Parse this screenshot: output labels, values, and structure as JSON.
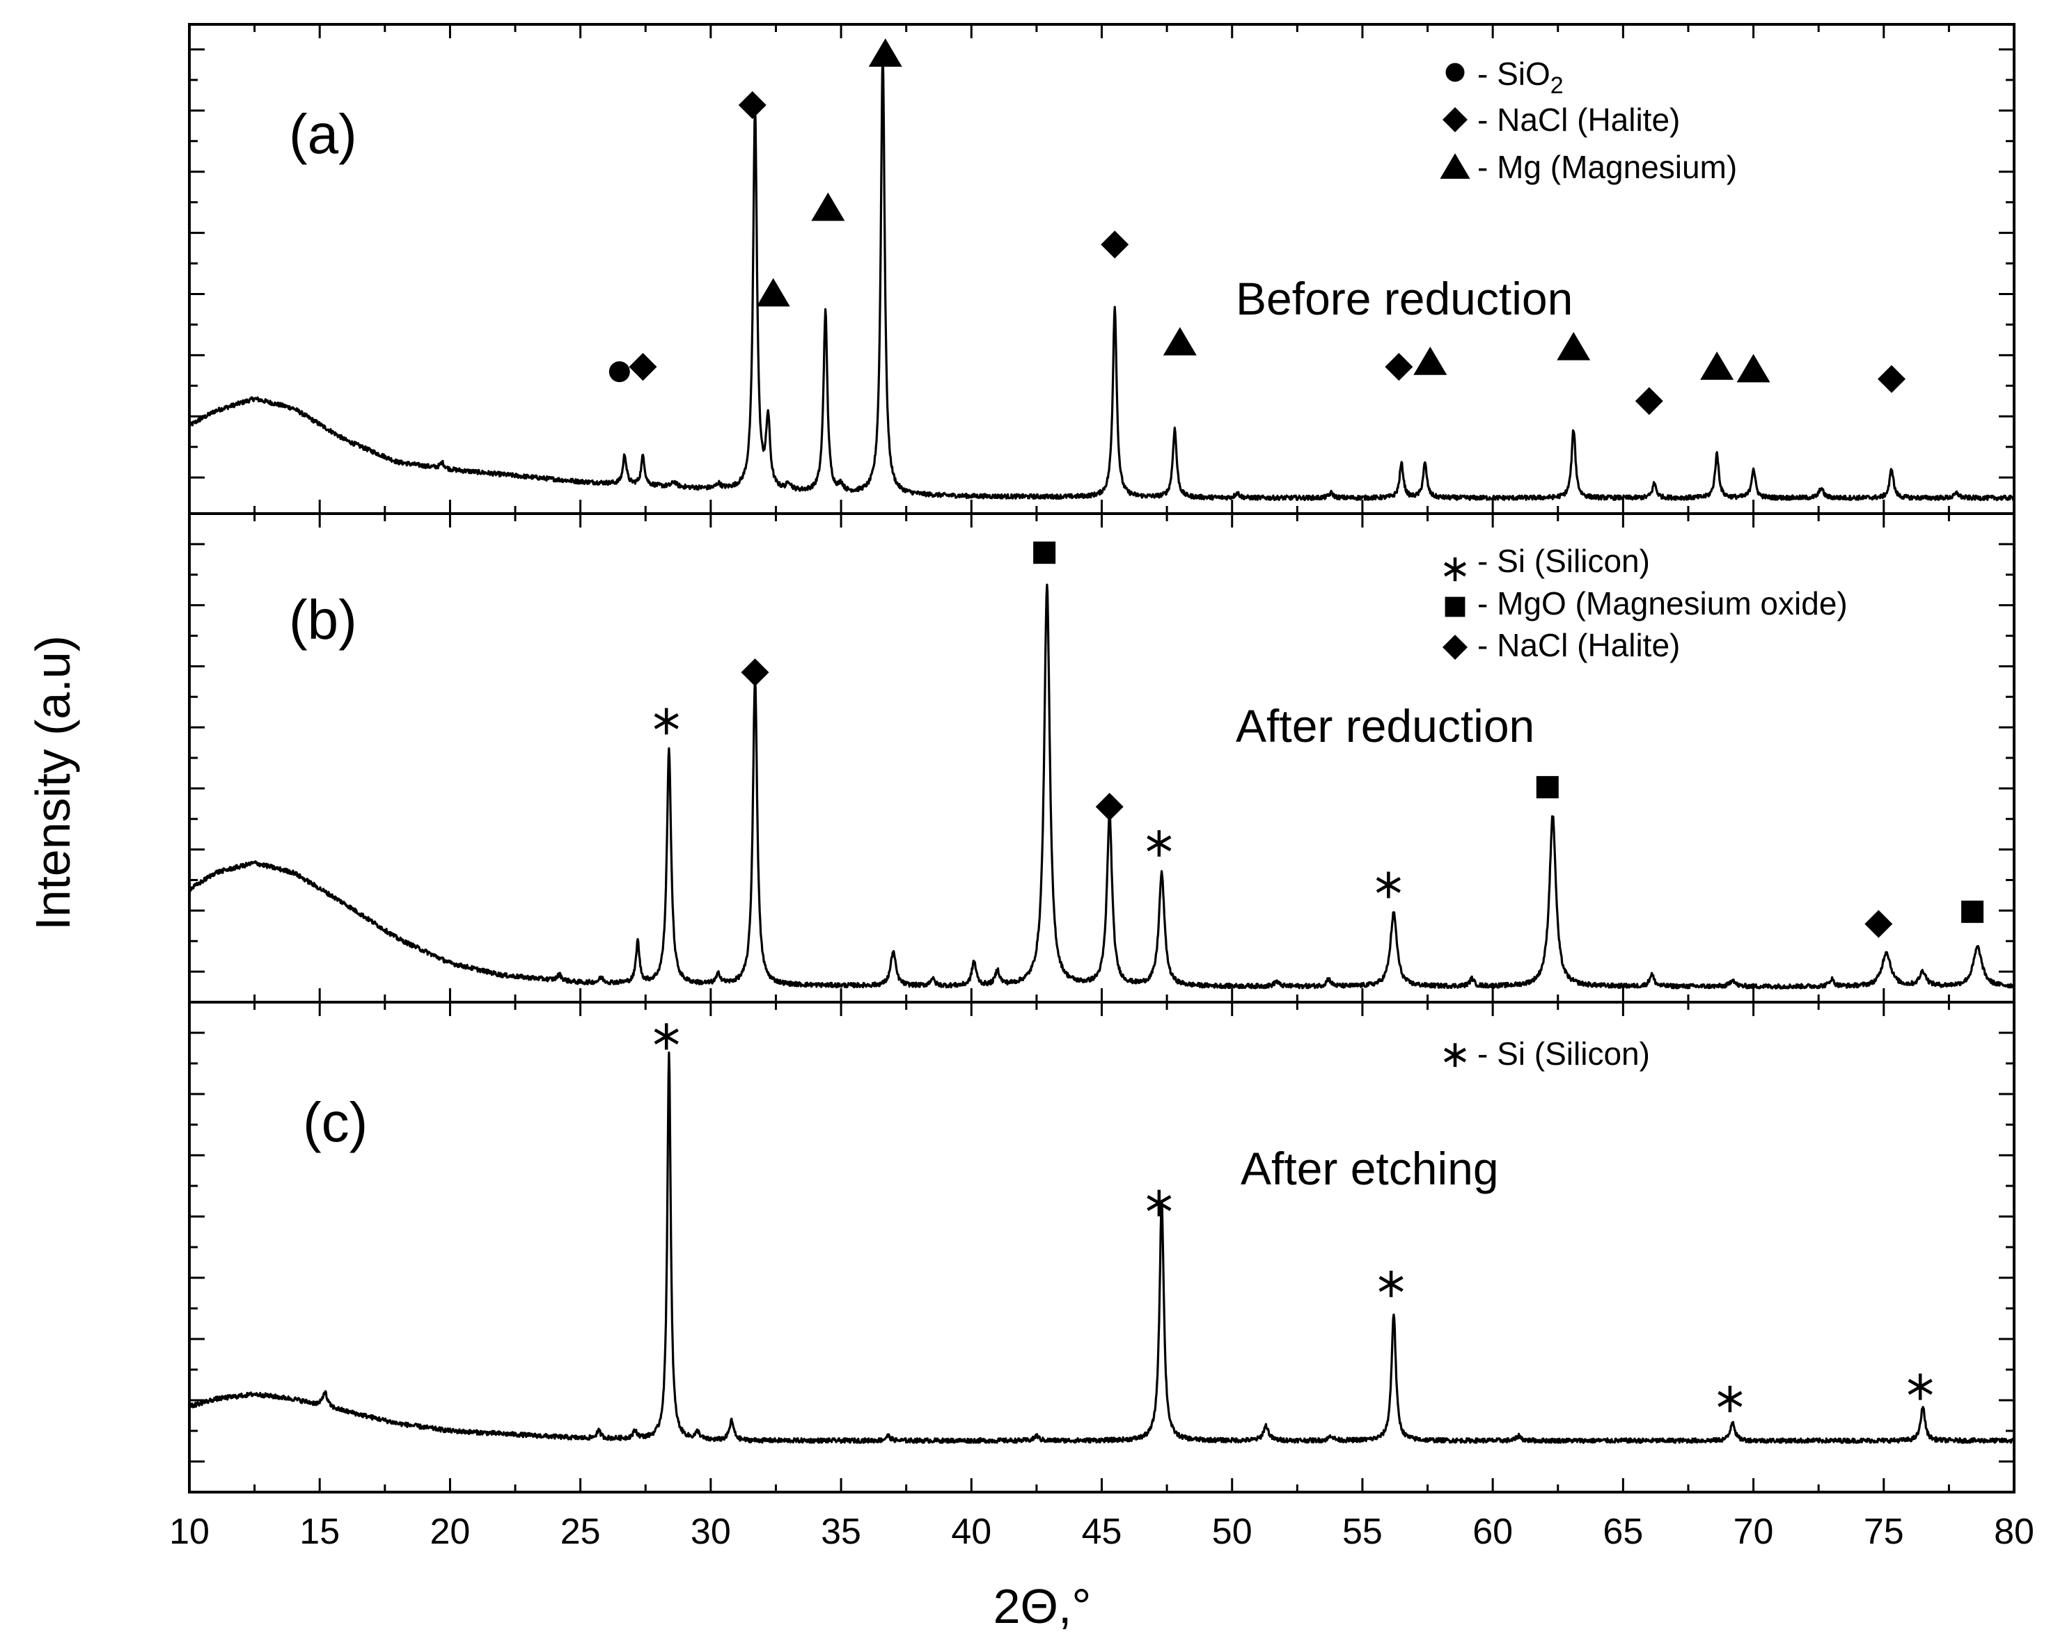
{
  "chart_data": {
    "type": "line",
    "layout": "three stacked panels sharing x axis",
    "xlabel": "2Θ,°",
    "ylabel": "Intensity (a.u)",
    "xlim": [
      10,
      80
    ],
    "x_ticks": [
      "10",
      "15",
      "20",
      "25",
      "30",
      "35",
      "40",
      "45",
      "50",
      "55",
      "60",
      "65",
      "70",
      "75",
      "80"
    ],
    "colors": {
      "line": "#000000",
      "axes": "#000000",
      "background": "#ffffff"
    },
    "panels": [
      {
        "id": "a",
        "label": "(a)",
        "condition": "Before reduction",
        "ylim": [
          0,
          100
        ],
        "baseline": {
          "x": [
            10,
            11,
            12.5,
            14,
            16,
            18,
            20,
            25,
            30,
            35,
            40,
            50,
            60,
            70,
            80
          ],
          "values": [
            18,
            21,
            23.5,
            21.5,
            15,
            10.5,
            9,
            6.5,
            5,
            4,
            3.5,
            3.2,
            3.2,
            3.2,
            3.2
          ]
        },
        "peaks": [
          {
            "x": 19.7,
            "height": 1.2,
            "width": 0.1
          },
          {
            "x": 26.7,
            "height": 6,
            "width": 0.08
          },
          {
            "x": 27.4,
            "height": 6,
            "width": 0.08
          },
          {
            "x": 28.6,
            "height": 1,
            "width": 0.1
          },
          {
            "x": 30.3,
            "height": 1,
            "width": 0.1
          },
          {
            "x": 31.7,
            "height": 78,
            "width": 0.09
          },
          {
            "x": 32.2,
            "height": 14,
            "width": 0.09
          },
          {
            "x": 33.0,
            "height": 1.5,
            "width": 0.1
          },
          {
            "x": 34.4,
            "height": 37,
            "width": 0.09
          },
          {
            "x": 35.0,
            "height": 1.5,
            "width": 0.1
          },
          {
            "x": 36.6,
            "height": 90,
            "width": 0.09
          },
          {
            "x": 45.5,
            "height": 39,
            "width": 0.09
          },
          {
            "x": 47.8,
            "height": 14,
            "width": 0.09
          },
          {
            "x": 50.2,
            "height": 1,
            "width": 0.1
          },
          {
            "x": 53.8,
            "height": 1,
            "width": 0.1
          },
          {
            "x": 56.5,
            "height": 7,
            "width": 0.09
          },
          {
            "x": 57.4,
            "height": 7,
            "width": 0.09
          },
          {
            "x": 63.1,
            "height": 14,
            "width": 0.09
          },
          {
            "x": 66.2,
            "height": 3,
            "width": 0.09
          },
          {
            "x": 68.6,
            "height": 9,
            "width": 0.09
          },
          {
            "x": 70.0,
            "height": 6,
            "width": 0.09
          },
          {
            "x": 72.6,
            "height": 2,
            "width": 0.1
          },
          {
            "x": 75.3,
            "height": 6,
            "width": 0.09
          },
          {
            "x": 77.8,
            "height": 1,
            "width": 0.1
          }
        ],
        "markers": [
          {
            "symbol": "circle",
            "x": 26.5,
            "y": 29
          },
          {
            "symbol": "diamond",
            "x": 27.4,
            "y": 30
          },
          {
            "symbol": "diamond",
            "x": 31.6,
            "y": 83.5
          },
          {
            "symbol": "triangle",
            "x": 32.4,
            "y": 45
          },
          {
            "symbol": "triangle",
            "x": 34.5,
            "y": 62.5
          },
          {
            "symbol": "triangle",
            "x": 36.7,
            "y": 94
          },
          {
            "symbol": "diamond",
            "x": 45.5,
            "y": 55
          },
          {
            "symbol": "triangle",
            "x": 48.0,
            "y": 35
          },
          {
            "symbol": "diamond",
            "x": 56.4,
            "y": 30
          },
          {
            "symbol": "triangle",
            "x": 57.6,
            "y": 31
          },
          {
            "symbol": "triangle",
            "x": 63.1,
            "y": 34
          },
          {
            "symbol": "diamond",
            "x": 66.0,
            "y": 23
          },
          {
            "symbol": "triangle",
            "x": 68.6,
            "y": 30
          },
          {
            "symbol": "triangle",
            "x": 70.0,
            "y": 29.5
          },
          {
            "symbol": "diamond",
            "x": 75.3,
            "y": 27.5
          }
        ],
        "legend": [
          {
            "symbol": "circle",
            "text": "- SiO",
            "subscript": "2"
          },
          {
            "symbol": "diamond",
            "text": "- NaCl (Halite)"
          },
          {
            "symbol": "triangle",
            "text": "- Mg (Magnesium)"
          }
        ]
      },
      {
        "id": "b",
        "label": "(b)",
        "condition": "After reduction",
        "ylim": [
          0,
          100
        ],
        "baseline": {
          "x": [
            10,
            11,
            12.5,
            14,
            16,
            18,
            20,
            22,
            25,
            30,
            40,
            50,
            60,
            70,
            80
          ],
          "values": [
            23,
            26.5,
            28.5,
            26.5,
            20,
            13,
            8,
            5.5,
            4,
            3.5,
            3.2,
            3.2,
            3.2,
            3.2,
            3.2
          ]
        },
        "peaks": [
          {
            "x": 24.2,
            "height": 1.2,
            "width": 0.1
          },
          {
            "x": 25.8,
            "height": 1,
            "width": 0.1
          },
          {
            "x": 27.2,
            "height": 8.5,
            "width": 0.08
          },
          {
            "x": 28.4,
            "height": 48,
            "width": 0.1
          },
          {
            "x": 30.3,
            "height": 2,
            "width": 0.1
          },
          {
            "x": 31.7,
            "height": 63,
            "width": 0.1
          },
          {
            "x": 37.0,
            "height": 7,
            "width": 0.12
          },
          {
            "x": 38.5,
            "height": 1.5,
            "width": 0.1
          },
          {
            "x": 40.1,
            "height": 5,
            "width": 0.1
          },
          {
            "x": 41.0,
            "height": 3,
            "width": 0.1
          },
          {
            "x": 42.9,
            "height": 82,
            "width": 0.13
          },
          {
            "x": 45.3,
            "height": 35,
            "width": 0.12
          },
          {
            "x": 47.3,
            "height": 23,
            "width": 0.13
          },
          {
            "x": 51.7,
            "height": 1,
            "width": 0.1
          },
          {
            "x": 53.7,
            "height": 1.5,
            "width": 0.1
          },
          {
            "x": 56.2,
            "height": 15,
            "width": 0.15
          },
          {
            "x": 59.2,
            "height": 1.5,
            "width": 0.1
          },
          {
            "x": 62.3,
            "height": 35,
            "width": 0.15
          },
          {
            "x": 66.1,
            "height": 2.5,
            "width": 0.1
          },
          {
            "x": 69.2,
            "height": 1.5,
            "width": 0.1
          },
          {
            "x": 73.0,
            "height": 1.5,
            "width": 0.1
          },
          {
            "x": 75.1,
            "height": 7,
            "width": 0.2
          },
          {
            "x": 76.5,
            "height": 3,
            "width": 0.15
          },
          {
            "x": 78.6,
            "height": 8,
            "width": 0.2
          }
        ],
        "markers": [
          {
            "symbol": "asterisk",
            "x": 28.3,
            "y": 57.5
          },
          {
            "symbol": "diamond",
            "x": 31.7,
            "y": 67.5
          },
          {
            "symbol": "square",
            "x": 42.8,
            "y": 92
          },
          {
            "symbol": "diamond",
            "x": 45.3,
            "y": 40
          },
          {
            "symbol": "asterisk",
            "x": 47.2,
            "y": 32.5
          },
          {
            "symbol": "asterisk",
            "x": 56.0,
            "y": 24
          },
          {
            "symbol": "square",
            "x": 62.1,
            "y": 44
          },
          {
            "symbol": "diamond",
            "x": 74.8,
            "y": 16
          },
          {
            "symbol": "square",
            "x": 78.4,
            "y": 18.5
          }
        ],
        "legend": [
          {
            "symbol": "asterisk",
            "text": "- Si (Silicon)"
          },
          {
            "symbol": "square",
            "text": "- MgO (Magnesium oxide)"
          },
          {
            "symbol": "diamond",
            "text": "- NaCl (Halite)"
          }
        ]
      },
      {
        "id": "c",
        "label": "(c)",
        "condition": "After etching",
        "ylim": [
          0,
          100
        ],
        "baseline": {
          "x": [
            10,
            11,
            12.5,
            14,
            16,
            18,
            20,
            25,
            30,
            40,
            50,
            60,
            70,
            80
          ],
          "values": [
            17.5,
            19,
            20,
            19,
            16.5,
            14,
            12.5,
            11,
            10.5,
            10.5,
            10.5,
            10.5,
            10.5,
            10.5
          ]
        },
        "peaks": [
          {
            "x": 15.2,
            "height": 3,
            "width": 0.1
          },
          {
            "x": 25.7,
            "height": 1.5,
            "width": 0.1
          },
          {
            "x": 27.1,
            "height": 1.5,
            "width": 0.1
          },
          {
            "x": 28.4,
            "height": 79,
            "width": 0.08
          },
          {
            "x": 29.5,
            "height": 1.5,
            "width": 0.1
          },
          {
            "x": 30.8,
            "height": 4,
            "width": 0.1
          },
          {
            "x": 36.8,
            "height": 1,
            "width": 0.1
          },
          {
            "x": 42.5,
            "height": 1,
            "width": 0.1
          },
          {
            "x": 47.3,
            "height": 49,
            "width": 0.1
          },
          {
            "x": 51.3,
            "height": 3,
            "width": 0.12
          },
          {
            "x": 53.8,
            "height": 1,
            "width": 0.1
          },
          {
            "x": 56.2,
            "height": 26,
            "width": 0.1
          },
          {
            "x": 61.0,
            "height": 1,
            "width": 0.1
          },
          {
            "x": 69.2,
            "height": 4,
            "width": 0.1
          },
          {
            "x": 76.5,
            "height": 7,
            "width": 0.1
          }
        ],
        "markers": [
          {
            "symbol": "asterisk",
            "x": 28.3,
            "y": 93
          },
          {
            "symbol": "asterisk",
            "x": 47.2,
            "y": 59
          },
          {
            "symbol": "asterisk",
            "x": 56.1,
            "y": 42.5
          },
          {
            "symbol": "asterisk",
            "x": 69.1,
            "y": 19
          },
          {
            "symbol": "asterisk",
            "x": 76.4,
            "y": 21.5
          }
        ],
        "legend": [
          {
            "symbol": "asterisk",
            "text": "- Si (Silicon)"
          }
        ]
      }
    ]
  }
}
